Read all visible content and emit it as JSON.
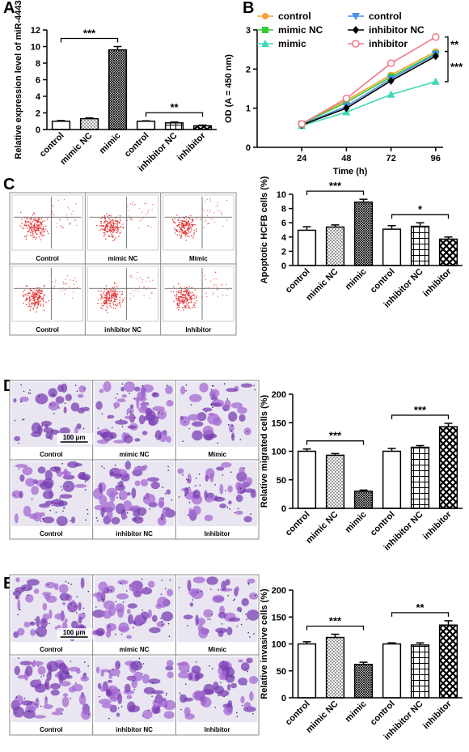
{
  "chart_data": [
    {
      "letter": "A",
      "type": "bar",
      "ylabel": "Relative expression level of miR-4443",
      "categories": [
        "control",
        "mimic NC",
        "mimic",
        "control",
        "inhibitor NC",
        "inhibitor"
      ],
      "values": [
        1.0,
        1.3,
        9.6,
        1.0,
        0.8,
        0.45
      ],
      "errors": [
        0.08,
        0.1,
        0.4,
        0.05,
        0.1,
        0.08
      ],
      "patterns": [
        "none",
        "dots",
        "dense",
        "none",
        "grid",
        "checker"
      ],
      "ylim": [
        0,
        12
      ],
      "yticks": [
        0,
        2,
        4,
        6,
        8,
        10,
        12
      ],
      "comparisons": [
        {
          "label": "***",
          "groups": [
            0,
            2
          ]
        },
        {
          "label": "**",
          "groups": [
            3,
            5
          ]
        }
      ]
    },
    {
      "letter": "B",
      "type": "line",
      "xlabel": "Time (h)",
      "ylabel": "OD (A = 450 nm)",
      "x": [
        24,
        48,
        72,
        96
      ],
      "xlim": [
        0,
        100
      ],
      "xticks": [
        24,
        48,
        72,
        96
      ],
      "ylim": [
        0,
        3
      ],
      "yticks": [
        0,
        1,
        2,
        3
      ],
      "legend": "top-left",
      "series": [
        {
          "name": "control",
          "color": "#f5a236",
          "marker": "circle",
          "values": [
            0.6,
            1.2,
            1.85,
            2.45
          ]
        },
        {
          "name": "mimic NC",
          "color": "#33cc33",
          "marker": "square",
          "values": [
            0.6,
            1.15,
            1.8,
            2.4
          ]
        },
        {
          "name": "mimic",
          "color": "#3fd9b5",
          "marker": "triangle",
          "values": [
            0.55,
            0.9,
            1.35,
            1.68
          ]
        },
        {
          "name": "control",
          "color": "#4a90e2",
          "marker": "triangle-down",
          "values": [
            0.58,
            1.05,
            1.75,
            2.38
          ]
        },
        {
          "name": "inhibitor NC",
          "color": "#000000",
          "marker": "diamond",
          "values": [
            0.57,
            1.0,
            1.7,
            2.33
          ]
        },
        {
          "name": "inhibitor",
          "color": "#f07a8a",
          "marker": "circle-open",
          "values": [
            0.6,
            1.25,
            2.15,
            2.82
          ]
        }
      ],
      "comparisons": [
        {
          "label": "**",
          "series": [
            5,
            0
          ]
        },
        {
          "label": "***",
          "series": [
            0,
            2
          ]
        }
      ]
    },
    {
      "type": "bar",
      "ylabel": "Apoptotic HCFB cells (%)",
      "categories": [
        "control",
        "mimic NC",
        "mimic",
        "control",
        "inhibitor NC",
        "inhibitor"
      ],
      "values": [
        4.95,
        5.4,
        8.9,
        5.1,
        5.5,
        3.7
      ],
      "errors": [
        0.5,
        0.3,
        0.4,
        0.5,
        0.5,
        0.3
      ],
      "patterns": [
        "none",
        "dots",
        "dense",
        "none",
        "grid",
        "checker"
      ],
      "ylim": [
        0,
        10
      ],
      "yticks": [
        0,
        2,
        4,
        6,
        8,
        10
      ],
      "comparisons": [
        {
          "label": "***",
          "groups": [
            0,
            2
          ]
        },
        {
          "label": "*",
          "groups": [
            3,
            5
          ]
        }
      ]
    },
    {
      "type": "bar",
      "ylabel": "Relative migrated cells (%)",
      "categories": [
        "control",
        "mimic NC",
        "mimic",
        "control",
        "inhibitor NC",
        "inhibitor"
      ],
      "values": [
        100,
        93,
        30,
        100,
        107,
        143
      ],
      "errors": [
        4,
        3,
        2,
        5,
        3,
        6
      ],
      "patterns": [
        "none",
        "dots",
        "dense",
        "none",
        "grid",
        "checker"
      ],
      "ylim": [
        0,
        200
      ],
      "yticks": [
        0,
        50,
        100,
        150,
        200
      ],
      "comparisons": [
        {
          "label": "***",
          "groups": [
            0,
            2
          ]
        },
        {
          "label": "***",
          "groups": [
            3,
            5
          ]
        }
      ]
    },
    {
      "type": "bar",
      "ylabel": "Relative invasive cells (%)",
      "categories": [
        "control",
        "mimic NC",
        "mimic",
        "control",
        "inhibitor NC",
        "inhibitor"
      ],
      "values": [
        100,
        112,
        62,
        100,
        98,
        135
      ],
      "errors": [
        4,
        6,
        4,
        2,
        4,
        8
      ],
      "patterns": [
        "none",
        "dots",
        "dense",
        "none",
        "grid",
        "checker"
      ],
      "ylim": [
        0,
        200
      ],
      "yticks": [
        0,
        50,
        100,
        150,
        200
      ],
      "comparisons": [
        {
          "label": "***",
          "groups": [
            0,
            2
          ]
        },
        {
          "label": "**",
          "groups": [
            3,
            5
          ]
        }
      ]
    }
  ],
  "image_panels": [
    {
      "letter": "C",
      "kind": "flow",
      "labels": [
        "Control",
        "mimic NC",
        "Mimic",
        "Control",
        "inhibitor NC",
        "Inhibitor"
      ]
    },
    {
      "letter": "D",
      "kind": "micrograph",
      "labels": [
        "Control",
        "mimic NC",
        "Mimic",
        "Control",
        "inhibitor NC",
        "Inhibitor"
      ],
      "scale_bar": "100 μm"
    },
    {
      "letter": "E",
      "kind": "micrograph",
      "labels": [
        "Control",
        "mimic NC",
        "Mimic",
        "Control",
        "inhibitor NC",
        "Inhibitor"
      ],
      "scale_bar": "100 μm"
    }
  ]
}
